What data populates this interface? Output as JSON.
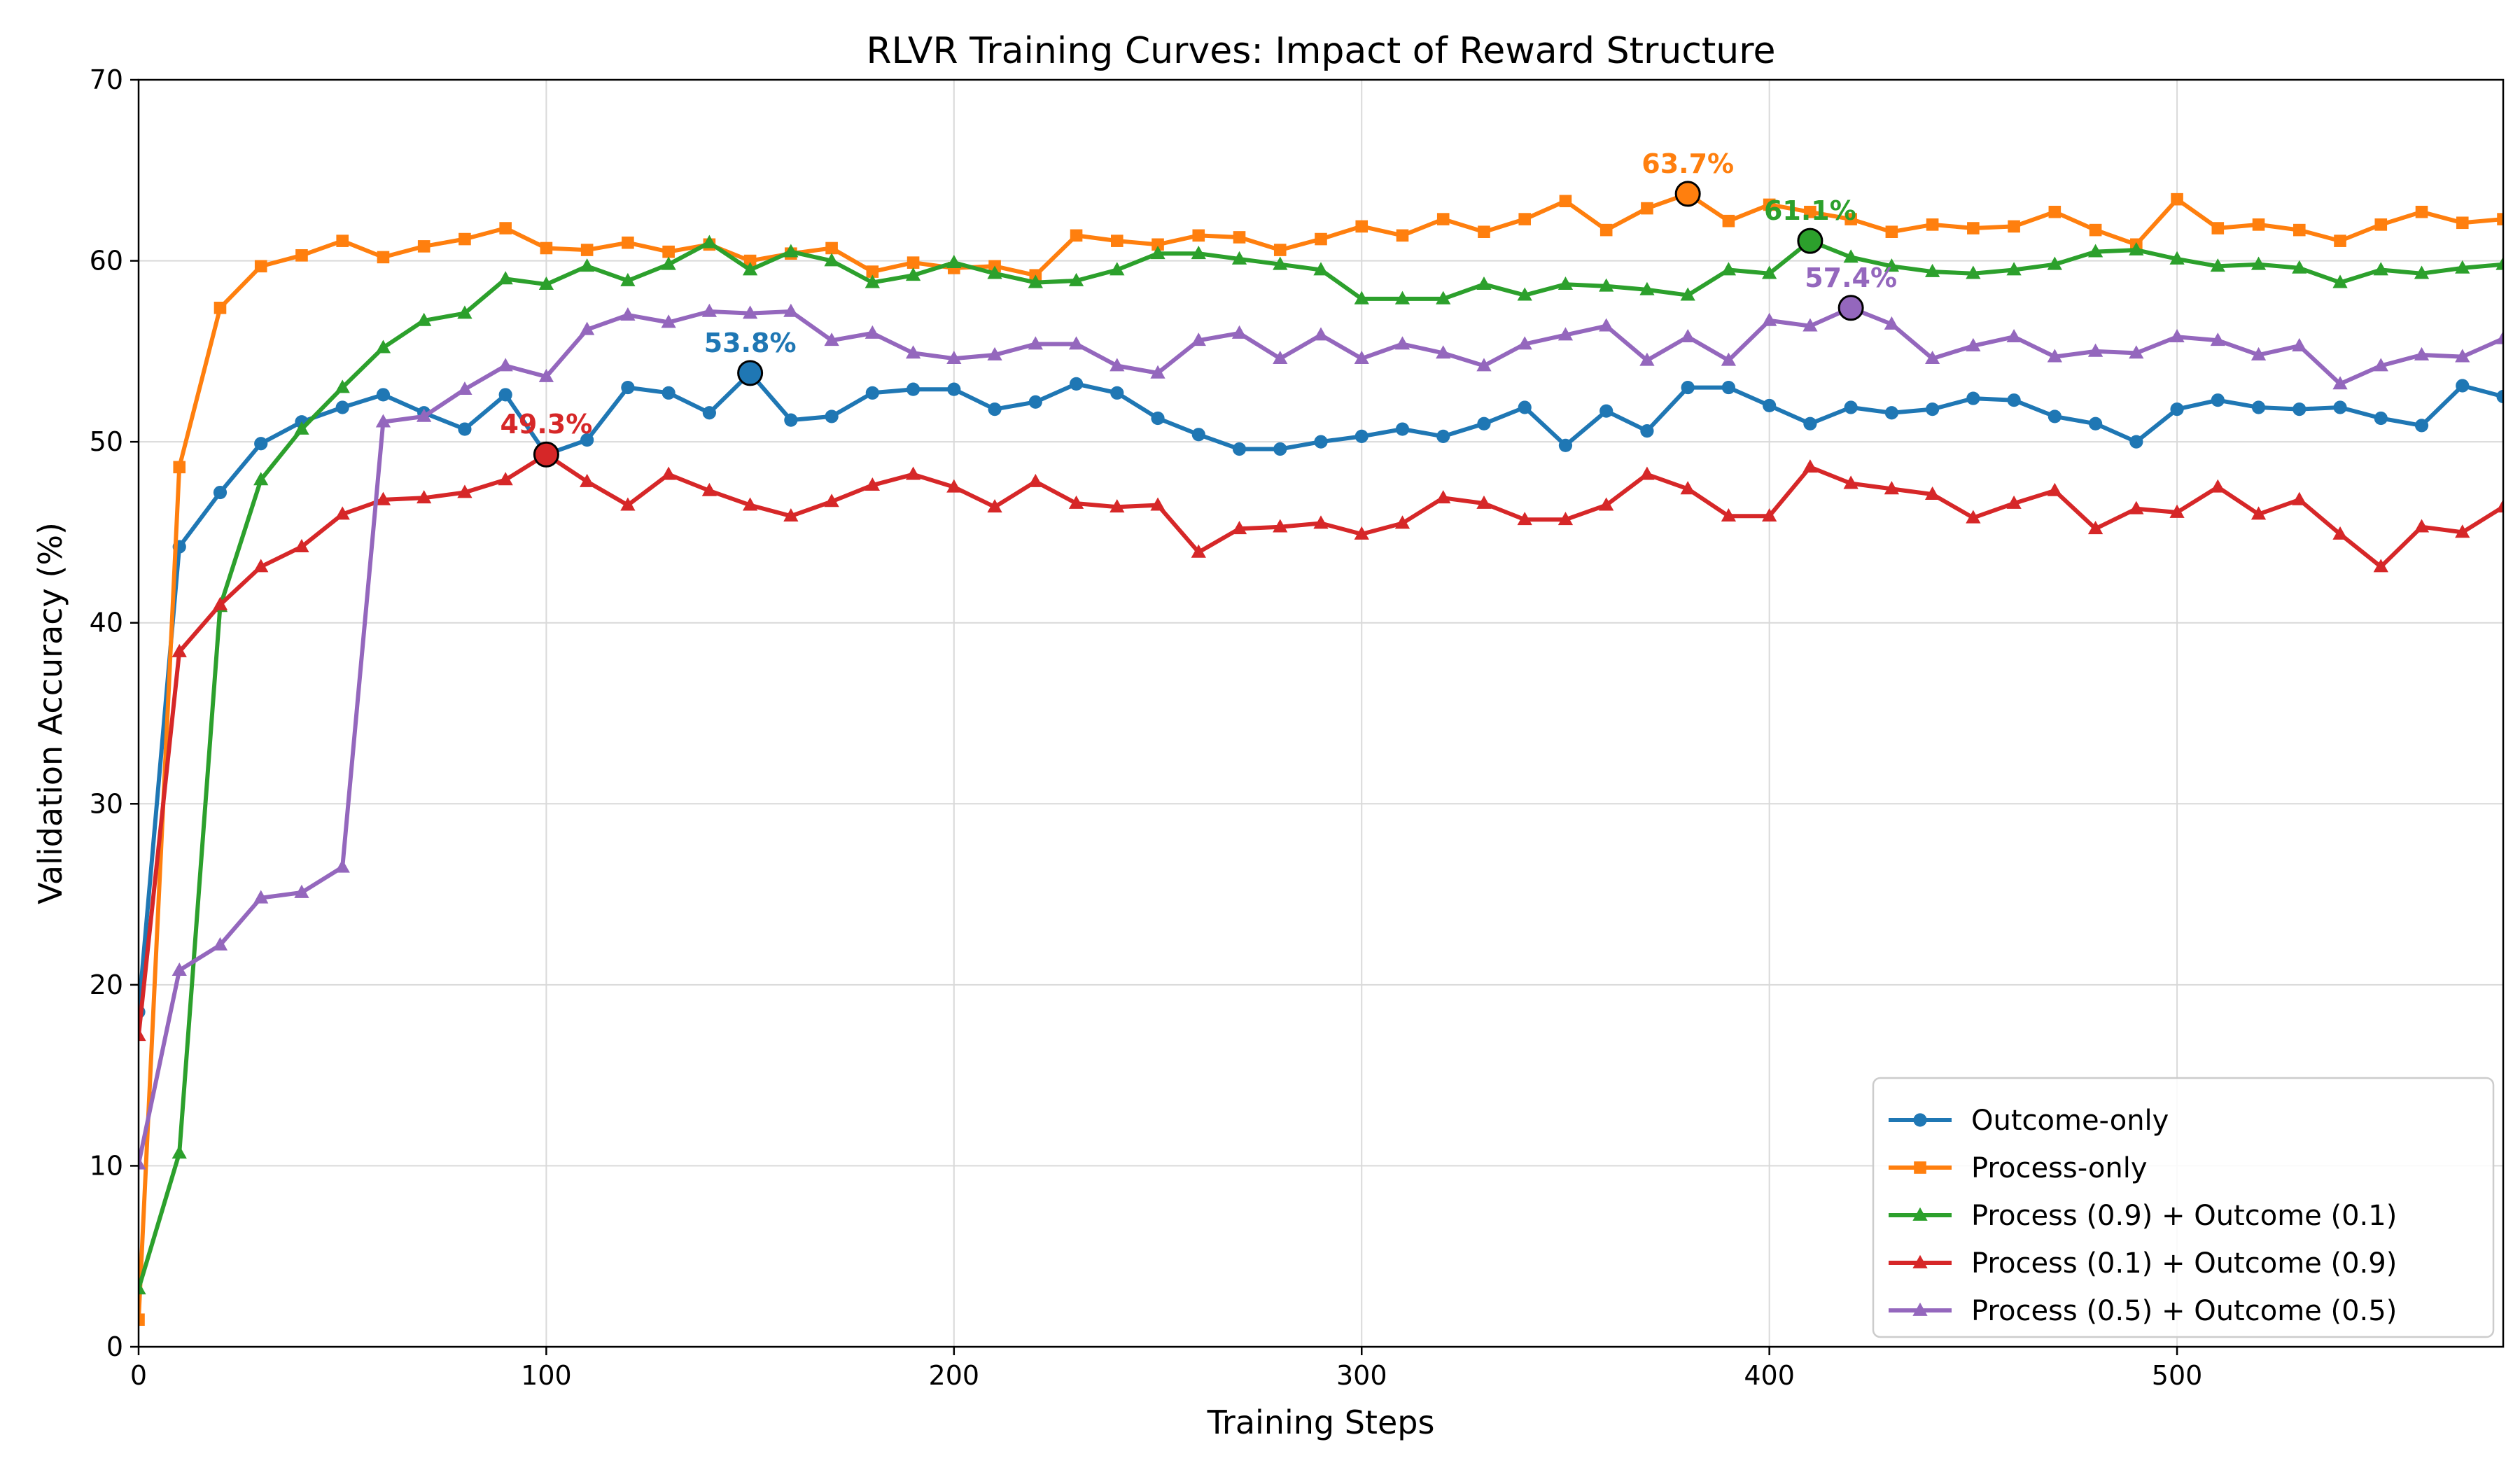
{
  "chart_data": {
    "type": "line",
    "title": "RLVR Training Curves: Impact of Reward Structure",
    "xlabel": "Training Steps",
    "ylabel": "Validation Accuracy (%)",
    "xlim": [
      0,
      580
    ],
    "ylim": [
      0,
      70
    ],
    "xticks": [
      0,
      100,
      200,
      300,
      400,
      500
    ],
    "yticks": [
      0,
      10,
      20,
      30,
      40,
      50,
      60,
      70
    ],
    "grid": true,
    "legend_position": "lower-right",
    "x": [
      0,
      10,
      20,
      30,
      40,
      50,
      60,
      70,
      80,
      90,
      100,
      110,
      120,
      130,
      140,
      150,
      160,
      170,
      180,
      190,
      200,
      210,
      220,
      230,
      240,
      250,
      260,
      270,
      280,
      290,
      300,
      310,
      320,
      330,
      340,
      350,
      360,
      370,
      380,
      390,
      400,
      410,
      420,
      430,
      440,
      450,
      460,
      470,
      480,
      490,
      500,
      510,
      520,
      530,
      540,
      550,
      560,
      570,
      580
    ],
    "series": [
      {
        "name": "Outcome-only",
        "color": "#1f77b4",
        "marker": "circle",
        "values": [
          18.5,
          44.2,
          47.2,
          49.9,
          51.1,
          51.9,
          52.6,
          51.6,
          50.7,
          52.6,
          49.3,
          50.1,
          53.0,
          52.7,
          51.6,
          53.8,
          51.2,
          51.4,
          52.7,
          52.9,
          52.9,
          51.8,
          52.2,
          53.2,
          52.7,
          51.3,
          50.4,
          49.6,
          49.6,
          50.0,
          50.3,
          50.7,
          50.3,
          51.0,
          51.9,
          49.8,
          51.7,
          50.6,
          53.0,
          53.0,
          52.0,
          51.0,
          51.9,
          51.6,
          51.8,
          52.4,
          52.3,
          51.4,
          51.0,
          50.0,
          51.8,
          52.3,
          51.9,
          51.8,
          51.9,
          51.3,
          50.9,
          53.1,
          52.5
        ],
        "peak": {
          "x": 150,
          "y": 53.8,
          "label": "53.8%"
        }
      },
      {
        "name": "Process-only",
        "color": "#ff7f0e",
        "marker": "square",
        "values": [
          1.5,
          48.6,
          57.4,
          59.7,
          60.3,
          61.1,
          60.2,
          60.8,
          61.2,
          61.8,
          60.7,
          60.6,
          61.0,
          60.5,
          60.9,
          60.0,
          60.4,
          60.7,
          59.4,
          59.9,
          59.6,
          59.7,
          59.2,
          61.4,
          61.1,
          60.9,
          61.4,
          61.3,
          60.6,
          61.2,
          61.9,
          61.4,
          62.3,
          61.6,
          62.3,
          63.3,
          61.7,
          62.9,
          63.7,
          62.2,
          63.1,
          62.7,
          62.3,
          61.6,
          62.0,
          61.8,
          61.9,
          62.7,
          61.7,
          60.9,
          63.4,
          61.8,
          62.0,
          61.7,
          61.1,
          62.0,
          62.7,
          62.1,
          62.3
        ],
        "peak": {
          "x": 380,
          "y": 63.7,
          "label": "63.7%"
        }
      },
      {
        "name": "Process (0.9) + Outcome (0.1)",
        "color": "#2ca02c",
        "marker": "triangle",
        "values": [
          3.2,
          10.7,
          40.9,
          47.9,
          50.7,
          53.0,
          55.2,
          56.7,
          57.1,
          59.0,
          58.7,
          59.7,
          58.9,
          59.8,
          61.0,
          59.5,
          60.5,
          60.0,
          58.8,
          59.2,
          59.9,
          59.3,
          58.8,
          58.9,
          59.5,
          60.4,
          60.4,
          60.1,
          59.8,
          59.5,
          57.9,
          57.9,
          57.9,
          58.7,
          58.1,
          58.7,
          58.6,
          58.4,
          58.1,
          59.5,
          59.3,
          61.1,
          60.2,
          59.7,
          59.4,
          59.3,
          59.5,
          59.8,
          60.5,
          60.6,
          60.1,
          59.7,
          59.8,
          59.6,
          58.8,
          59.5,
          59.3,
          59.6,
          59.8
        ],
        "peak": {
          "x": 410,
          "y": 61.1,
          "label": "61.1%"
        }
      },
      {
        "name": "Process (0.1) + Outcome (0.9)",
        "color": "#d62728",
        "marker": "triangle",
        "values": [
          17.2,
          38.4,
          41.0,
          43.1,
          44.2,
          46.0,
          46.8,
          46.9,
          47.2,
          47.9,
          49.3,
          47.8,
          46.5,
          48.2,
          47.3,
          46.5,
          45.9,
          46.7,
          47.6,
          48.2,
          47.5,
          46.4,
          47.8,
          46.6,
          46.4,
          46.5,
          43.9,
          45.2,
          45.3,
          45.5,
          44.9,
          45.5,
          46.9,
          46.6,
          45.7,
          45.7,
          46.5,
          48.2,
          47.4,
          45.9,
          45.9,
          48.6,
          47.7,
          47.4,
          47.1,
          45.8,
          46.6,
          47.3,
          45.2,
          46.3,
          46.1,
          47.5,
          46.0,
          46.8,
          44.9,
          43.1,
          45.3,
          45.0,
          46.4
        ],
        "peak": {
          "x": 100,
          "y": 49.3,
          "label": "49.3%"
        }
      },
      {
        "name": "Process (0.5) + Outcome (0.5)",
        "color": "#9467bd",
        "marker": "triangle",
        "values": [
          10.1,
          20.8,
          22.2,
          24.8,
          25.1,
          26.5,
          51.1,
          51.4,
          52.9,
          54.2,
          53.6,
          56.2,
          57.0,
          56.6,
          57.2,
          57.1,
          57.2,
          55.6,
          56.0,
          54.9,
          54.6,
          54.8,
          55.4,
          55.4,
          54.2,
          53.8,
          55.6,
          56.0,
          54.6,
          55.9,
          54.6,
          55.4,
          54.9,
          54.2,
          55.4,
          55.9,
          56.4,
          54.5,
          55.8,
          54.5,
          56.7,
          56.4,
          57.4,
          56.5,
          54.6,
          55.3,
          55.8,
          54.7,
          55.0,
          54.9,
          55.8,
          55.6,
          54.8,
          55.3,
          53.2,
          54.2,
          54.8,
          54.7,
          55.7
        ],
        "peak": {
          "x": 420,
          "y": 57.4,
          "label": "57.4%"
        }
      }
    ]
  }
}
